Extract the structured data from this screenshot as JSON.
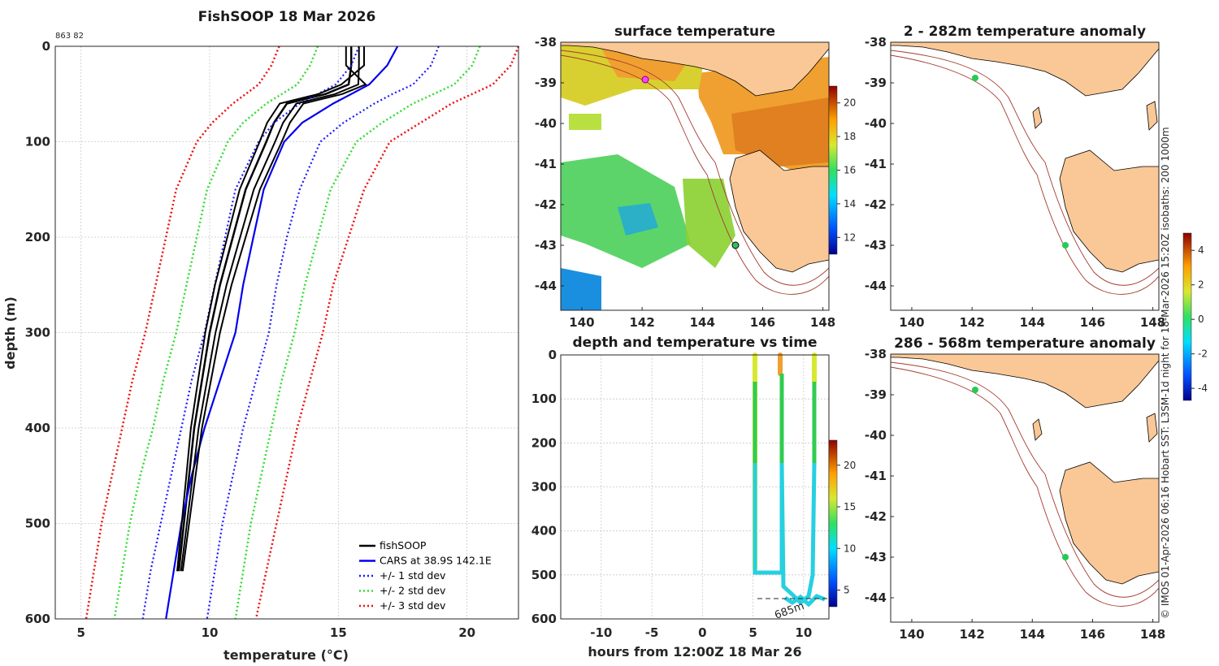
{
  "profile": {
    "title": "FishSOOP 18 Mar 2026",
    "id_label": "863 82",
    "xlabel": "temperature (°C)",
    "ylabel": "depth (m)",
    "x_ticks": [
      "5",
      "10",
      "15",
      "20"
    ],
    "y_ticks": [
      "0",
      "100",
      "200",
      "300",
      "400",
      "500",
      "600"
    ],
    "legend": [
      "fishSOOP",
      "CARS at 38.9S 142.1E",
      "+/- 1 std dev",
      "+/- 2 std dev",
      "+/- 3 std dev"
    ]
  },
  "sst": {
    "title": "surface temperature",
    "lon_ticks": [
      "140",
      "142",
      "144",
      "146",
      "148"
    ],
    "lat_ticks": [
      "-38",
      "-39",
      "-40",
      "-41",
      "-42",
      "-43",
      "-44"
    ],
    "cbar_ticks": [
      "12",
      "14",
      "16",
      "18",
      "20"
    ]
  },
  "timeplot": {
    "title": "depth and temperature vs time",
    "xlabel": "hours from 12:00Z 18 Mar 26",
    "x_ticks": [
      "-10",
      "-5",
      "0",
      "5",
      "10"
    ],
    "y_ticks": [
      "0",
      "100",
      "200",
      "300",
      "400",
      "500",
      "600"
    ],
    "cbar_ticks": [
      "5",
      "10",
      "15",
      "20"
    ],
    "max_depth_label": "685m"
  },
  "anom1": {
    "title": "2 - 282m temperature anomaly",
    "lon_ticks": [
      "140",
      "142",
      "144",
      "146",
      "148"
    ],
    "lat_ticks": [
      "-38",
      "-39",
      "-40",
      "-41",
      "-42",
      "-43",
      "-44"
    ]
  },
  "anom2": {
    "title": "286 - 568m temperature anomaly",
    "lon_ticks": [
      "140",
      "142",
      "144",
      "146",
      "148"
    ],
    "lat_ticks": [
      "-38",
      "-39",
      "-40",
      "-41",
      "-42",
      "-43",
      "-44"
    ]
  },
  "anom_cbar_ticks": [
    "4",
    "2",
    "0",
    "-2",
    "-4"
  ],
  "side_note": "© IMOS 01-Apr-2026 06:16 Hobart SST: L3SM-1d night for 18-Mar-2026 15:20Z isobaths: 200  1000m",
  "colors": {
    "fishsoop": "#000000",
    "cars": "#0000ee",
    "std1": "#1a1aff",
    "std2": "#33dd33",
    "std3": "#ee1111"
  },
  "chart_data": {
    "type": "line",
    "title": "FishSOOP 18 Mar 2026",
    "xlabel": "temperature (°C)",
    "ylabel": "depth (m)",
    "xlim": [
      4,
      22
    ],
    "ylim": [
      600,
      0
    ],
    "depth": [
      0,
      20,
      40,
      50,
      60,
      80,
      100,
      150,
      200,
      250,
      300,
      350,
      400,
      450,
      500,
      550,
      600
    ],
    "series": [
      {
        "name": "fishSOOP",
        "temperature": [
          15.5,
          15.5,
          15.4,
          14.5,
          13.0,
          12.5,
          12.2,
          11.4,
          10.9,
          10.4,
          10.0,
          9.7,
          9.4,
          9.2,
          9.0,
          8.8,
          null
        ]
      },
      {
        "name": "CARS at 38.9S 142.1E",
        "temperature": [
          17.3,
          16.9,
          16.2,
          15.5,
          14.8,
          13.6,
          12.9,
          12.1,
          11.7,
          11.3,
          11.0,
          10.4,
          9.8,
          9.3,
          8.9,
          8.6,
          8.3
        ]
      },
      {
        "name": "+1 std dev",
        "temperature": [
          18.9,
          18.6,
          17.9,
          17.1,
          16.4,
          15.2,
          14.3,
          13.5,
          13.0,
          12.6,
          12.3,
          11.8,
          11.3,
          10.9,
          10.5,
          10.2,
          9.9
        ]
      },
      {
        "name": "-1 std dev",
        "temperature": [
          15.8,
          15.5,
          14.9,
          14.2,
          13.5,
          12.5,
          11.9,
          11.0,
          10.6,
          10.2,
          9.8,
          9.3,
          8.9,
          8.5,
          8.1,
          7.7,
          7.4
        ]
      },
      {
        "name": "+2 std dev",
        "temperature": [
          20.5,
          20.2,
          19.5,
          18.7,
          17.9,
          16.7,
          15.7,
          14.7,
          14.2,
          13.7,
          13.3,
          12.8,
          12.4,
          12.0,
          11.6,
          11.3,
          11.0
        ]
      },
      {
        "name": "-2 std dev",
        "temperature": [
          14.2,
          13.9,
          13.4,
          12.8,
          12.2,
          11.3,
          10.7,
          9.9,
          9.5,
          9.1,
          8.7,
          8.2,
          7.8,
          7.3,
          6.9,
          6.6,
          6.3
        ]
      },
      {
        "name": "+3 std dev",
        "temperature": [
          22.0,
          21.7,
          21.0,
          20.2,
          19.4,
          18.2,
          17.0,
          16.0,
          15.4,
          14.8,
          14.4,
          13.9,
          13.4,
          13.0,
          12.6,
          12.2,
          11.8
        ]
      },
      {
        "name": "-3 std dev",
        "temperature": [
          12.7,
          12.4,
          11.9,
          11.4,
          10.9,
          10.1,
          9.5,
          8.7,
          8.3,
          7.9,
          7.5,
          7.0,
          6.6,
          6.2,
          5.8,
          5.5,
          5.2
        ]
      }
    ]
  }
}
